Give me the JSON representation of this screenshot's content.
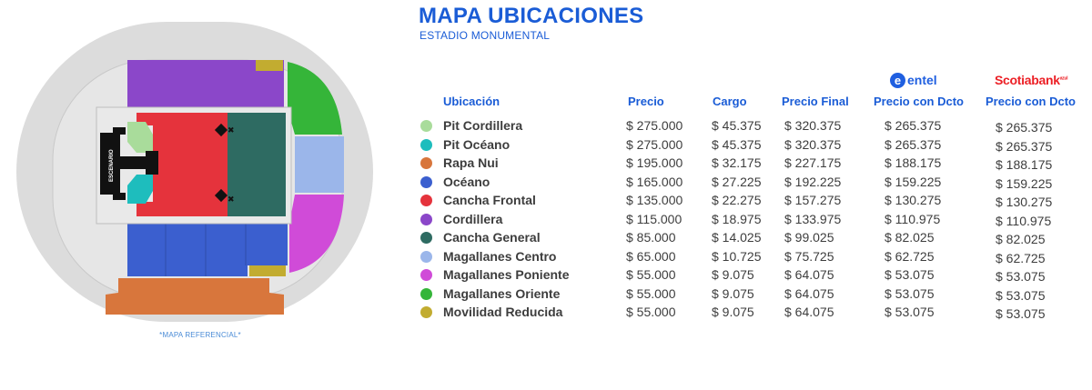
{
  "header": {
    "title": "MAPA UBICACIONES",
    "subtitle": "ESTADIO MONUMENTAL"
  },
  "map": {
    "stage_label": "ESCENARIO",
    "note": "*MAPA REFERENCIAL*"
  },
  "brands": {
    "entel": "entel",
    "entel_mark": "e",
    "scotiabank": "Scotiabank",
    "scotiabank_suffix": "azul"
  },
  "columns": {
    "location": "Ubicación",
    "price": "Precio",
    "fee": "Cargo",
    "final": "Precio Final",
    "entel_discount": "Precio con Dcto",
    "scotia_discount": "Precio con Dcto"
  },
  "zones": [
    {
      "name": "Pit Cordillera",
      "color": "#a9dc9b",
      "price": "$ 275.000",
      "fee": "$ 45.375",
      "final": "$ 320.375",
      "entel": "$ 265.375",
      "scotia": "$ 265.375"
    },
    {
      "name": "Pit Océano",
      "color": "#1ebdbd",
      "price": "$ 275.000",
      "fee": "$ 45.375",
      "final": "$ 320.375",
      "entel": "$ 265.375",
      "scotia": "$ 265.375"
    },
    {
      "name": "Rapa Nui",
      "color": "#d8763c",
      "price": "$ 195.000",
      "fee": "$ 32.175",
      "final": "$ 227.175",
      "entel": "$ 188.175",
      "scotia": "$ 188.175"
    },
    {
      "name": "Océano",
      "color": "#3b5fcf",
      "price": "$ 165.000",
      "fee": "$ 27.225",
      "final": "$ 192.225",
      "entel": "$ 159.225",
      "scotia": "$ 159.225"
    },
    {
      "name": "Cancha Frontal",
      "color": "#e5333c",
      "price": "$ 135.000",
      "fee": "$ 22.275",
      "final": "$ 157.275",
      "entel": "$ 130.275",
      "scotia": "$ 130.275"
    },
    {
      "name": "Cordillera",
      "color": "#8b47c9",
      "price": "$ 115.000",
      "fee": "$ 18.975",
      "final": "$ 133.975",
      "entel": "$ 110.975",
      "scotia": "$ 110.975"
    },
    {
      "name": "Cancha General",
      "color": "#2e6b62",
      "price": "$ 85.000",
      "fee": "$ 14.025",
      "final": "$ 99.025",
      "entel": "$ 82.025",
      "scotia": "$ 82.025"
    },
    {
      "name": "Magallanes Centro",
      "color": "#9bb6ea",
      "price": "$ 65.000",
      "fee": "$ 10.725",
      "final": "$ 75.725",
      "entel": "$ 62.725",
      "scotia": "$ 62.725"
    },
    {
      "name": "Magallanes Poniente",
      "color": "#d04bd8",
      "price": "$ 55.000",
      "fee": "$ 9.075",
      "final": "$ 64.075",
      "entel": "$ 53.075",
      "scotia": "$ 53.075"
    },
    {
      "name": "Magallanes Oriente",
      "color": "#35b539",
      "price": "$ 55.000",
      "fee": "$ 9.075",
      "final": "$ 64.075",
      "entel": "$ 53.075",
      "scotia": "$ 53.075"
    },
    {
      "name": "Movilidad Reducida",
      "color": "#c2ac30",
      "price": "$ 55.000",
      "fee": "$ 9.075",
      "final": "$ 64.075",
      "entel": "$ 53.075",
      "scotia": "$ 53.075"
    }
  ]
}
